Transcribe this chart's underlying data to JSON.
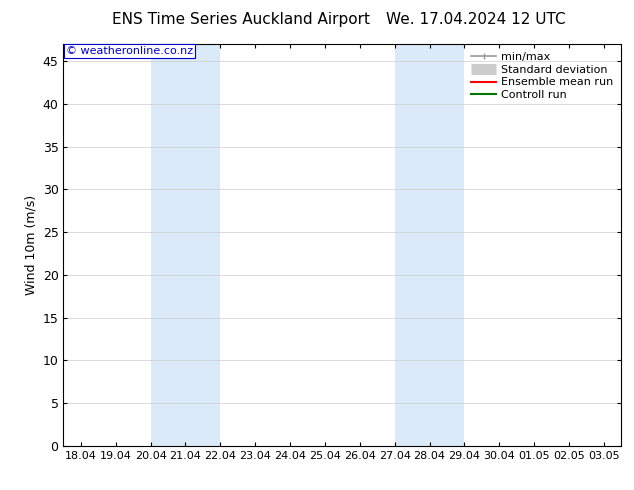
{
  "title_left": "ENS Time Series Auckland Airport",
  "title_right": "We. 17.04.2024 12 UTC",
  "ylabel": "Wind 10m (m/s)",
  "watermark": "© weatheronline.co.nz",
  "watermark_color": "#0000cc",
  "background_color": "#ffffff",
  "plot_bg_color": "#ffffff",
  "ylim": [
    0,
    47
  ],
  "yticks": [
    0,
    5,
    10,
    15,
    20,
    25,
    30,
    35,
    40,
    45
  ],
  "x_labels": [
    "18.04",
    "19.04",
    "20.04",
    "21.04",
    "22.04",
    "23.04",
    "24.04",
    "25.04",
    "26.04",
    "27.04",
    "28.04",
    "29.04",
    "30.04",
    "01.05",
    "02.05",
    "03.05"
  ],
  "shading_bands": [
    {
      "x_start": "20.04",
      "x_end": "22.04"
    },
    {
      "x_start": "27.04",
      "x_end": "29.04"
    }
  ],
  "shading_color": "#daeaf8",
  "legend_entries": [
    {
      "label": "min/max",
      "color": "#999999",
      "lw": 1.2,
      "ls": "-",
      "type": "minmax"
    },
    {
      "label": "Standard deviation",
      "color": "#cccccc",
      "lw": 8,
      "ls": "-",
      "type": "stddev"
    },
    {
      "label": "Ensemble mean run",
      "color": "#ff0000",
      "lw": 1.5,
      "ls": "-",
      "type": "line"
    },
    {
      "label": "Controll run",
      "color": "#007700",
      "lw": 1.5,
      "ls": "-",
      "type": "line"
    }
  ],
  "grid_color": "#cccccc",
  "tick_color": "#000000",
  "spine_color": "#000000",
  "font_size": 9,
  "title_font_size": 11
}
